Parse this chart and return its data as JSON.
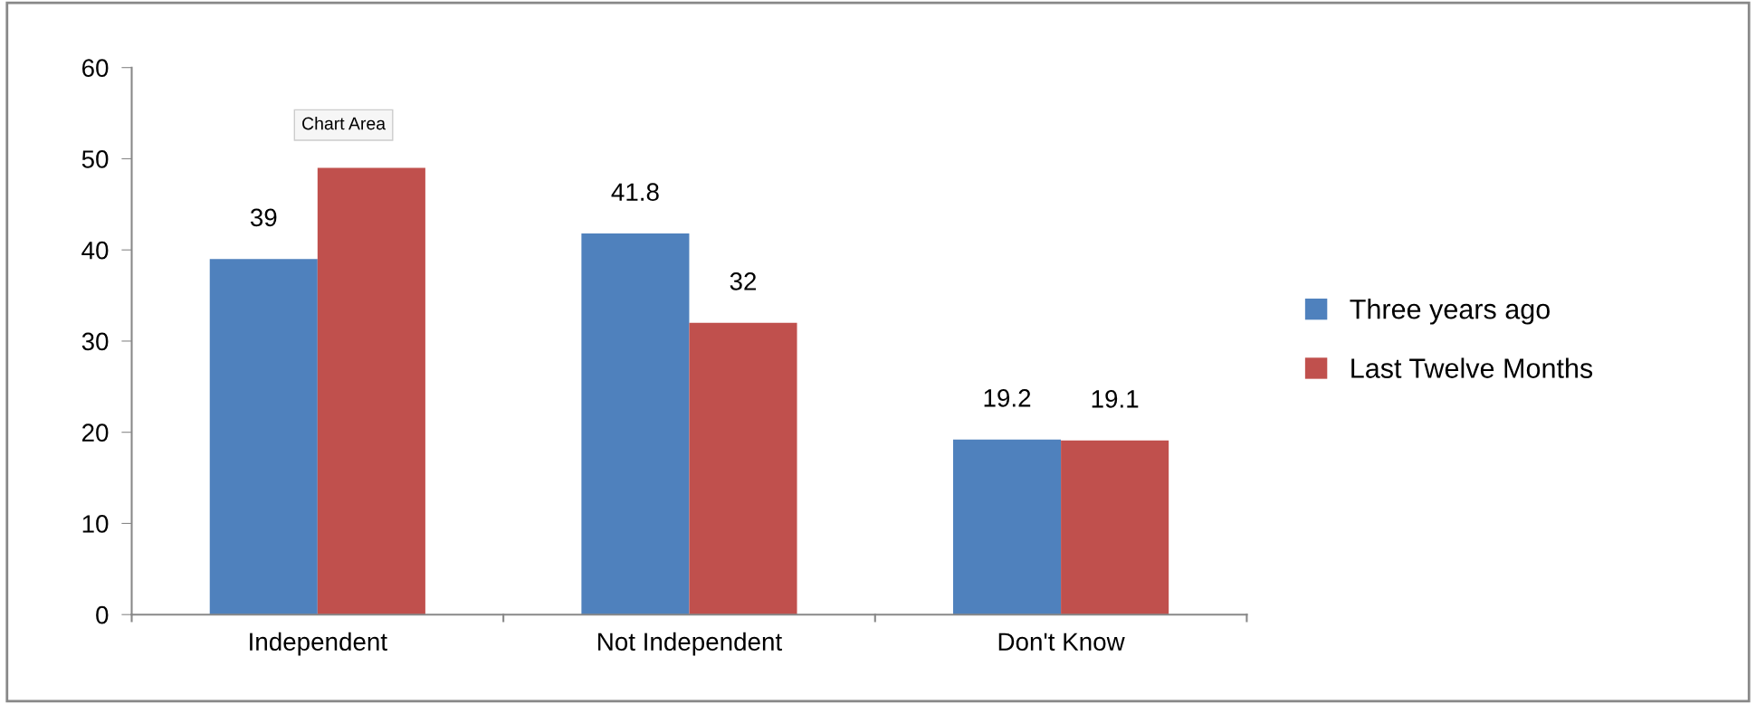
{
  "chart_data": {
    "type": "bar",
    "categories": [
      "Independent",
      "Not Independent",
      "Don't Know"
    ],
    "series": [
      {
        "name": "Three years ago",
        "color": "#4f81bd",
        "values": [
          39,
          41.8,
          19.2
        ],
        "value_labels": [
          "39",
          "41.8",
          "19.2"
        ]
      },
      {
        "name": "Last Twelve Months",
        "color": "#c0504d",
        "values": [
          49,
          32,
          19.1
        ],
        "value_labels": [
          null,
          "32",
          "19.1"
        ]
      }
    ],
    "ylim": [
      0,
      60
    ],
    "yticks": [
      0,
      10,
      20,
      30,
      40,
      50,
      60
    ],
    "grid": false,
    "legend": "right",
    "annotations": [
      "Chart Area"
    ]
  }
}
